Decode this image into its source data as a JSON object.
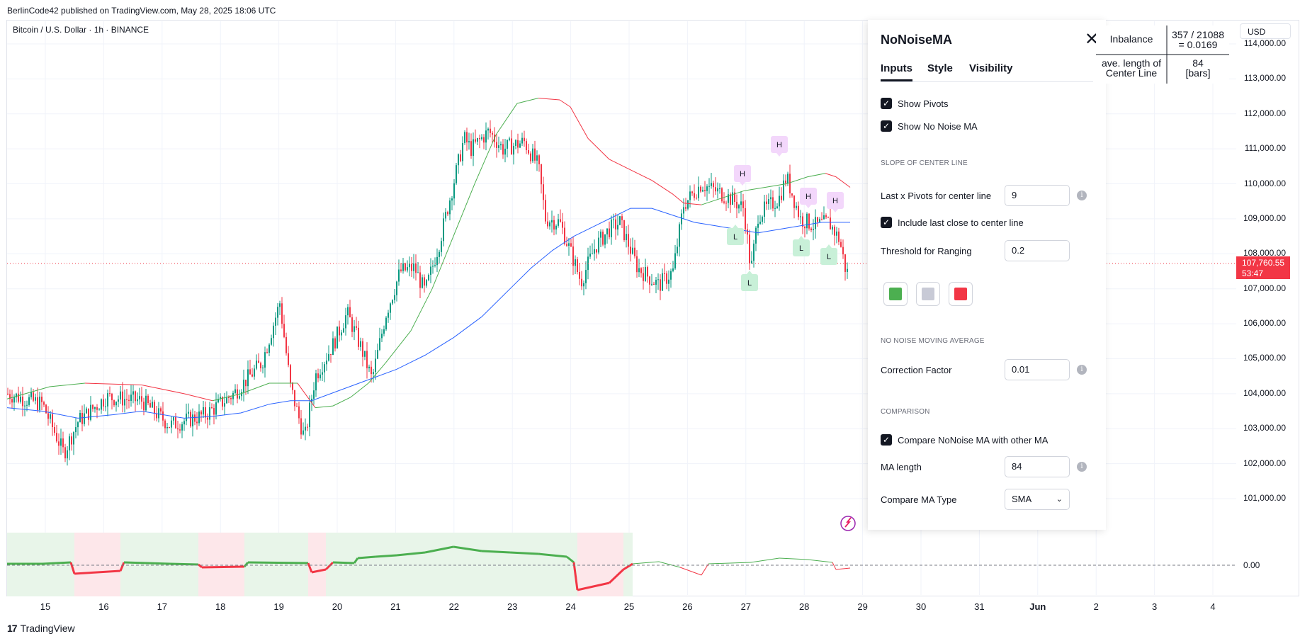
{
  "publish_line": "BerlinCode42 published on TradingView.com, May 28, 2025 18:06 UTC",
  "symbol_line": "Bitcoin / U.S. Dollar · 1h · BINANCE",
  "currency": "USD",
  "price_tag": {
    "price": "107,760.55",
    "countdown": "53:47"
  },
  "y_axis": [
    "114,000.00",
    "113,000.00",
    "112,000.00",
    "111,000.00",
    "110,000.00",
    "109,000.00",
    "108,000.00",
    "107,000.00",
    "106,000.00",
    "105,000.00",
    "104,000.00",
    "103,000.00",
    "102,000.00",
    "101,000.00"
  ],
  "oscillator_zero": "0.00",
  "x_axis": [
    "15",
    "16",
    "17",
    "18",
    "19",
    "20",
    "21",
    "22",
    "23",
    "24",
    "25",
    "26",
    "27",
    "28",
    "29",
    "30",
    "31",
    "Jun",
    "2",
    "3",
    "4"
  ],
  "brand": "TradingView",
  "pivot_labels": {
    "high": "H",
    "low": "L"
  },
  "stats_table": {
    "row1_label": "Inbalance",
    "row1_value_line1": "357 / 21088",
    "row1_value_line2": "= 0.0169",
    "row2_label_line1": "ave. length of",
    "row2_label_line2": "Center Line",
    "row2_value_line1": "84",
    "row2_value_line2": "[bars]"
  },
  "dialog": {
    "title": "NoNoiseMA",
    "tabs": [
      "Inputs",
      "Style",
      "Visibility"
    ],
    "show_pivots": "Show Pivots",
    "show_no_noise_ma": "Show No Noise MA",
    "section_slope": "SLOPE OF CENTER LINE",
    "last_x_pivots_label": "Last x Pivots for center line",
    "last_x_pivots_value": "9",
    "include_last_close": "Include last close to center line",
    "threshold_label": "Threshold for Ranging",
    "threshold_value": "0.2",
    "swatch_colors": [
      "#4caf50",
      "#c8cad6",
      "#f23645"
    ],
    "section_nnma": "NO NOISE MOVING AVERAGE",
    "correction_label": "Correction Factor",
    "correction_value": "0.01",
    "section_comparison": "COMPARISON",
    "compare_label": "Compare NoNoise MA with other MA",
    "ma_length_label": "MA length",
    "ma_length_value": "84",
    "compare_type_label": "Compare MA Type",
    "compare_type_value": "SMA"
  },
  "colors": {
    "up": "#089981",
    "down": "#f23645",
    "green_line": "#4caf50",
    "red_line": "#f23645",
    "blue_line": "#2962ff"
  }
}
